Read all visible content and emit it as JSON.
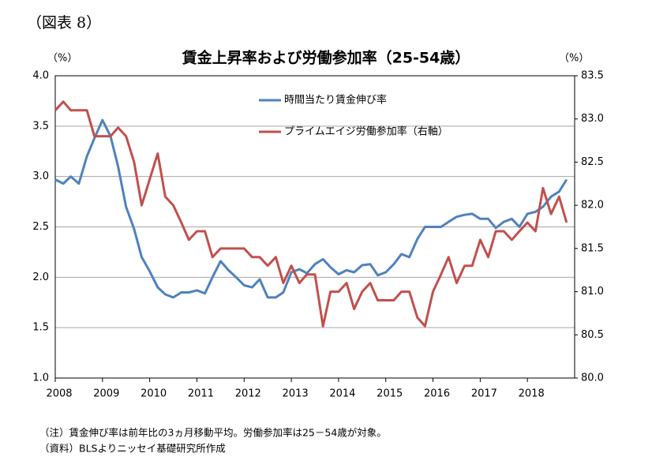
{
  "chart_data": {
    "type": "line",
    "figure_label": "（図表 8）",
    "title": "賃金上昇率および労働参加率（25-54歳）",
    "ylabel": "（%）",
    "y2label": "（%）",
    "notes": [
      "（注）賃金伸び率は前年比の3ヵ月移動平均。労働参加率は25－54歳が対象。",
      "（資料）BLSよりニッセイ基礎研究所作成"
    ],
    "x": [
      2008,
      2008.17,
      2008.33,
      2008.5,
      2008.67,
      2008.83,
      2009,
      2009.17,
      2009.33,
      2009.5,
      2009.67,
      2009.83,
      2010,
      2010.17,
      2010.33,
      2010.5,
      2010.67,
      2010.83,
      2011,
      2011.17,
      2011.33,
      2011.5,
      2011.67,
      2011.83,
      2012,
      2012.17,
      2012.33,
      2012.5,
      2012.67,
      2012.83,
      2013,
      2013.17,
      2013.33,
      2013.5,
      2013.67,
      2013.83,
      2014,
      2014.17,
      2014.33,
      2014.5,
      2014.67,
      2014.83,
      2015,
      2015.17,
      2015.33,
      2015.5,
      2015.67,
      2015.83,
      2016,
      2016.17,
      2016.33,
      2016.5,
      2016.67,
      2016.83,
      2017,
      2017.17,
      2017.33,
      2017.5,
      2017.67,
      2017.83,
      2018,
      2018.17,
      2018.33,
      2018.5,
      2018.67,
      2018.83
    ],
    "series": [
      {
        "name": "時間当たり賃金伸び率",
        "color": "#4f81bd",
        "axis": "y",
        "values": [
          2.97,
          2.93,
          3.0,
          2.93,
          3.2,
          3.38,
          3.56,
          3.4,
          3.1,
          2.7,
          2.48,
          2.2,
          2.06,
          1.9,
          1.83,
          1.8,
          1.85,
          1.85,
          1.87,
          1.84,
          2.0,
          2.16,
          2.07,
          2.0,
          1.92,
          1.9,
          1.98,
          1.8,
          1.8,
          1.85,
          2.05,
          2.08,
          2.04,
          2.13,
          2.18,
          2.1,
          2.03,
          2.07,
          2.05,
          2.12,
          2.13,
          2.02,
          2.05,
          2.13,
          2.23,
          2.2,
          2.38,
          2.5,
          2.5,
          2.5,
          2.55,
          2.6,
          2.62,
          2.63,
          2.58,
          2.58,
          2.49,
          2.55,
          2.58,
          2.5,
          2.63,
          2.65,
          2.7,
          2.8,
          2.85,
          2.97
        ]
      },
      {
        "name": "プライムエイジ労働参加率（右軸）",
        "color": "#c0504d",
        "axis": "y2",
        "values": [
          83.1,
          83.2,
          83.1,
          83.1,
          83.1,
          82.8,
          82.8,
          82.8,
          82.9,
          82.8,
          82.5,
          82.0,
          82.3,
          82.6,
          82.1,
          82.0,
          81.8,
          81.6,
          81.7,
          81.7,
          81.4,
          81.5,
          81.5,
          81.5,
          81.5,
          81.4,
          81.4,
          81.3,
          81.4,
          81.1,
          81.3,
          81.1,
          81.2,
          81.2,
          80.6,
          81.0,
          81.0,
          81.1,
          80.8,
          81.0,
          81.1,
          80.9,
          80.9,
          80.9,
          81.0,
          81.0,
          80.7,
          80.6,
          81.0,
          81.2,
          81.4,
          81.1,
          81.3,
          81.3,
          81.6,
          81.4,
          81.7,
          81.7,
          81.6,
          81.7,
          81.8,
          81.7,
          82.2,
          81.9,
          82.1,
          81.8
        ]
      }
    ],
    "xlim": [
      2008,
      2019
    ],
    "xticks": [
      2008,
      2009,
      2010,
      2011,
      2012,
      2013,
      2014,
      2015,
      2016,
      2017,
      2018
    ],
    "ylim": [
      1.0,
      4.0
    ],
    "yticks": [
      {
        "value": 1.0,
        "label": "1.0"
      },
      {
        "value": 1.5,
        "label": "1.5"
      },
      {
        "value": 2.0,
        "label": "2.0"
      },
      {
        "value": 2.5,
        "label": "2.5"
      },
      {
        "value": 3.0,
        "label": "3.0"
      },
      {
        "value": 3.5,
        "label": "3.5"
      },
      {
        "value": 4.0,
        "label": "4.0"
      }
    ],
    "y2lim": [
      80.0,
      83.5
    ],
    "y2ticks": [
      {
        "value": 80.0,
        "label": "80.0"
      },
      {
        "value": 80.5,
        "label": "80.5"
      },
      {
        "value": 81.0,
        "label": "81.0"
      },
      {
        "value": 81.5,
        "label": "81.5"
      },
      {
        "value": 82.0,
        "label": "82.0"
      },
      {
        "value": 82.5,
        "label": "82.5"
      },
      {
        "value": 83.0,
        "label": "83.0"
      },
      {
        "value": 83.5,
        "label": "83.5"
      }
    ],
    "grid": true,
    "legend": "upper center"
  }
}
